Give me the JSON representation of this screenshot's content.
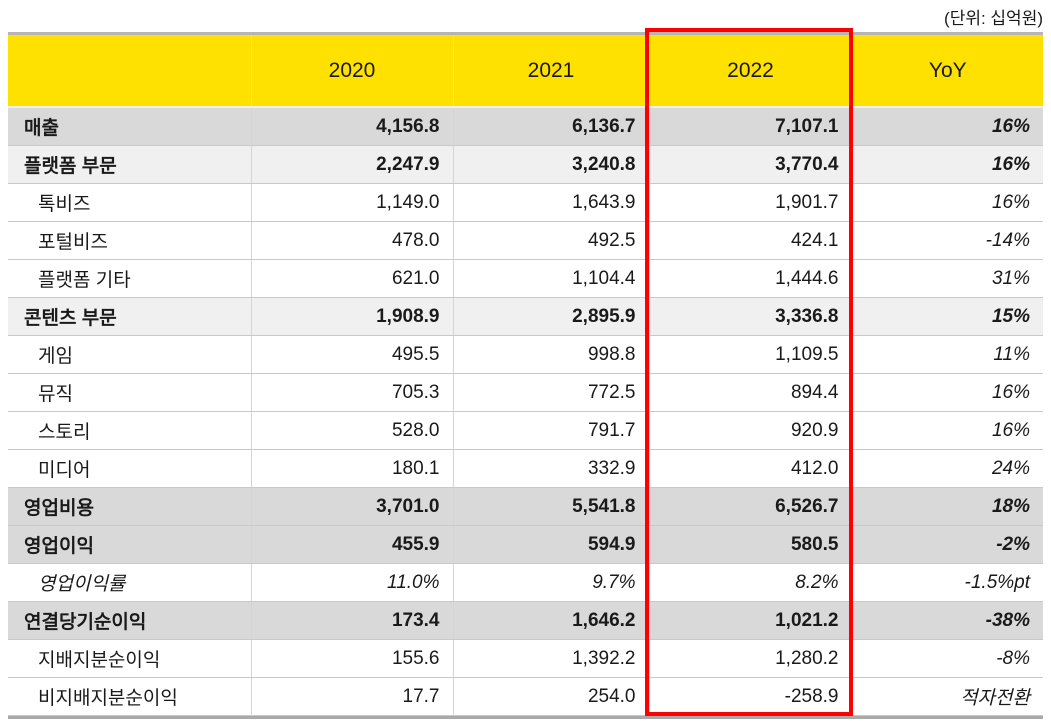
{
  "unit_label": "(단위: 십억원)",
  "colors": {
    "header_yellow": "#FFE100",
    "highlight_red": "#FF0000",
    "row_emphasis_gray": "#D9D9D9",
    "row_section_gray": "#F0F0F0",
    "table_border_gray": "#B5B5B5"
  },
  "chart_data": {
    "type": "table",
    "title": "",
    "unit_label": "(단위: 십억원)",
    "columns": [
      "",
      "2020",
      "2021",
      "2022",
      "YoY"
    ],
    "highlighted_column": "2022",
    "rows": [
      {
        "label": "매출",
        "values": [
          "4,156.8",
          "6,136.7",
          "7,107.1"
        ],
        "yoy": "16%",
        "style": "emphasis"
      },
      {
        "label": "플랫폼 부문",
        "values": [
          "2,247.9",
          "3,240.8",
          "3,770.4"
        ],
        "yoy": "16%",
        "style": "section"
      },
      {
        "label": "톡비즈",
        "values": [
          "1,149.0",
          "1,643.9",
          "1,901.7"
        ],
        "yoy": "16%",
        "style": "sub"
      },
      {
        "label": "포털비즈",
        "values": [
          "478.0",
          "492.5",
          "424.1"
        ],
        "yoy": "-14%",
        "style": "sub"
      },
      {
        "label": "플랫폼 기타",
        "values": [
          "621.0",
          "1,104.4",
          "1,444.6"
        ],
        "yoy": "31%",
        "style": "sub"
      },
      {
        "label": "콘텐츠 부문",
        "values": [
          "1,908.9",
          "2,895.9",
          "3,336.8"
        ],
        "yoy": "15%",
        "style": "section"
      },
      {
        "label": "게임",
        "values": [
          "495.5",
          "998.8",
          "1,109.5"
        ],
        "yoy": "11%",
        "style": "sub"
      },
      {
        "label": "뮤직",
        "values": [
          "705.3",
          "772.5",
          "894.4"
        ],
        "yoy": "16%",
        "style": "sub"
      },
      {
        "label": "스토리",
        "values": [
          "528.0",
          "791.7",
          "920.9"
        ],
        "yoy": "16%",
        "style": "sub"
      },
      {
        "label": "미디어",
        "values": [
          "180.1",
          "332.9",
          "412.0"
        ],
        "yoy": "24%",
        "style": "sub"
      },
      {
        "label": "영업비용",
        "values": [
          "3,701.0",
          "5,541.8",
          "6,526.7"
        ],
        "yoy": "18%",
        "style": "emphasis"
      },
      {
        "label": "영업이익",
        "values": [
          "455.9",
          "594.9",
          "580.5"
        ],
        "yoy": "-2%",
        "style": "emphasis"
      },
      {
        "label": "영업이익률",
        "values": [
          "11.0%",
          "9.7%",
          "8.2%"
        ],
        "yoy": "-1.5%pt",
        "style": "sub-italic"
      },
      {
        "label": "연결당기순이익",
        "values": [
          "173.4",
          "1,646.2",
          "1,021.2"
        ],
        "yoy": "-38%",
        "style": "emphasis"
      },
      {
        "label": "지배지분순이익",
        "values": [
          "155.6",
          "1,392.2",
          "1,280.2"
        ],
        "yoy": "-8%",
        "style": "sub"
      },
      {
        "label": "비지배지분순이익",
        "values": [
          "17.7",
          "254.0",
          "-258.9"
        ],
        "yoy": "적자전환",
        "style": "sub"
      }
    ]
  }
}
